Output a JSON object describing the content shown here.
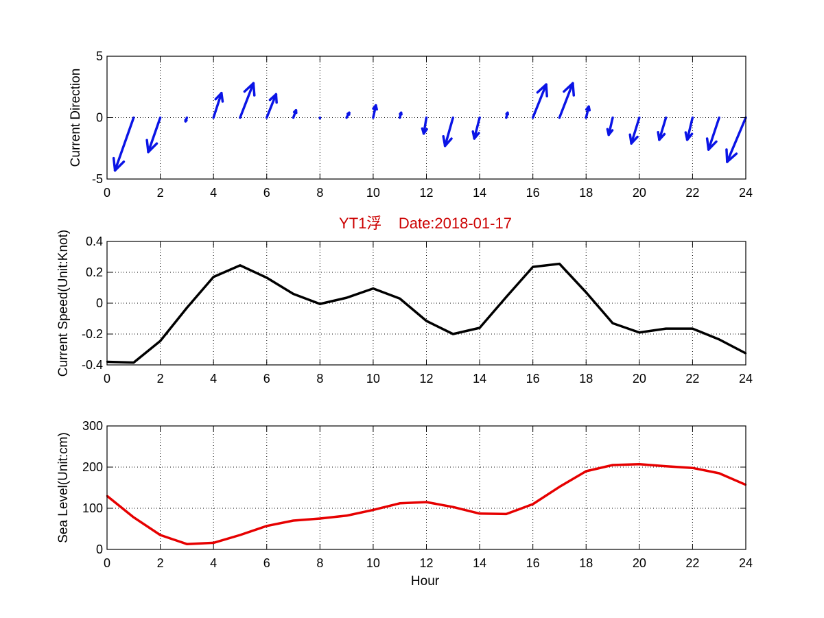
{
  "title": "YT1浮    Date:2018-01-17",
  "colors": {
    "direction": "#0a14e6",
    "speed": "#000000",
    "sea_level": "#e60000",
    "title": "#cc0000"
  },
  "chart_data": [
    {
      "type": "quiver",
      "ylabel": "Current Direction",
      "xlim": [
        0,
        24
      ],
      "ylim": [
        -5,
        5
      ],
      "xticks": [
        "0",
        "2",
        "4",
        "6",
        "8",
        "10",
        "12",
        "14",
        "16",
        "18",
        "20",
        "22",
        "24"
      ],
      "yticks": [
        "-5",
        "0",
        "5"
      ],
      "grid": true,
      "x": [
        1,
        2,
        3,
        4,
        5,
        6,
        7,
        8,
        9,
        10,
        11,
        12,
        13,
        14,
        15,
        16,
        17,
        18,
        19,
        20,
        21,
        22,
        23,
        24
      ],
      "u": [
        -0.7,
        -0.45,
        -0.05,
        0.3,
        0.5,
        0.35,
        0.1,
        0.0,
        0.1,
        0.1,
        0.05,
        -0.1,
        -0.3,
        -0.2,
        0.05,
        0.5,
        0.5,
        0.1,
        -0.15,
        -0.3,
        -0.25,
        -0.2,
        -0.4,
        -0.7
      ],
      "v": [
        -4.3,
        -2.8,
        -0.3,
        2.0,
        2.8,
        1.9,
        0.6,
        -0.05,
        0.4,
        1.0,
        0.4,
        -1.3,
        -2.3,
        -1.7,
        0.4,
        2.7,
        2.8,
        0.9,
        -1.4,
        -2.1,
        -1.8,
        -1.8,
        -2.6,
        -3.6
      ]
    },
    {
      "type": "line",
      "ylabel": "Current Speed(Unit:Knot)",
      "xlim": [
        0,
        24
      ],
      "ylim": [
        -0.4,
        0.4
      ],
      "xticks": [
        "0",
        "2",
        "4",
        "6",
        "8",
        "10",
        "12",
        "14",
        "16",
        "18",
        "20",
        "22",
        "24"
      ],
      "yticks": [
        "-0.4",
        "-0.2",
        "0",
        "0.2",
        "0.4"
      ],
      "grid": true,
      "x": [
        0,
        1,
        2,
        3,
        4,
        5,
        6,
        7,
        8,
        9,
        10,
        11,
        12,
        13,
        14,
        15,
        16,
        17,
        18,
        19,
        20,
        21,
        22,
        23,
        24
      ],
      "y": [
        -0.38,
        -0.385,
        -0.245,
        -0.03,
        0.17,
        0.245,
        0.165,
        0.06,
        -0.005,
        0.035,
        0.095,
        0.03,
        -0.115,
        -0.2,
        -0.16,
        0.04,
        0.235,
        0.255,
        0.07,
        -0.13,
        -0.19,
        -0.165,
        -0.165,
        -0.235,
        -0.325
      ]
    },
    {
      "type": "line",
      "ylabel": "Sea Level(Unit:cm)",
      "xlabel": "Hour",
      "xlim": [
        0,
        24
      ],
      "ylim": [
        0,
        300
      ],
      "xticks": [
        "0",
        "2",
        "4",
        "6",
        "8",
        "10",
        "12",
        "14",
        "16",
        "18",
        "20",
        "22",
        "24"
      ],
      "yticks": [
        "0",
        "100",
        "200",
        "300"
      ],
      "grid": true,
      "x": [
        0,
        1,
        2,
        3,
        4,
        5,
        6,
        7,
        8,
        9,
        10,
        11,
        12,
        13,
        14,
        15,
        16,
        17,
        18,
        19,
        20,
        21,
        22,
        23,
        24
      ],
      "y": [
        130,
        78,
        35,
        13,
        16,
        35,
        57,
        70,
        75,
        82,
        96,
        112,
        115,
        103,
        87,
        86,
        110,
        152,
        190,
        205,
        207,
        202,
        198,
        185,
        157
      ]
    }
  ]
}
